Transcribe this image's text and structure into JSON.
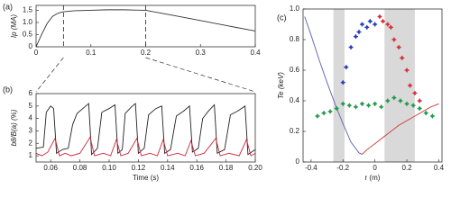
{
  "chart_data": [
    {
      "type": "line",
      "panel": "(a)",
      "ylabel": "Ip (MA)",
      "xlim": [
        0,
        0.4
      ],
      "ylim": [
        0,
        1.7
      ],
      "xticks": [
        0,
        0.1,
        0.2,
        0.3,
        0.4
      ],
      "yticks": [
        0,
        0.5,
        {
          "value": 1,
          "label": "1.0"
        },
        1.5
      ],
      "markers": [
        0.05,
        0.2
      ],
      "series": [
        {
          "name": "Ip",
          "color": "#333333",
          "x": [
            0,
            0.01,
            0.02,
            0.03,
            0.04,
            0.05,
            0.07,
            0.1,
            0.13,
            0.16,
            0.18,
            0.2,
            0.25,
            0.3,
            0.35,
            0.4
          ],
          "values": [
            0,
            0.5,
            0.95,
            1.25,
            1.38,
            1.44,
            1.48,
            1.5,
            1.52,
            1.52,
            1.51,
            1.5,
            1.29,
            1.08,
            0.86,
            0.65
          ]
        }
      ]
    },
    {
      "type": "line",
      "panel": "(b)",
      "ylabel": "bθ/B(a) (%)",
      "xlabel": "Time (s)",
      "xlim": [
        0.05,
        0.2
      ],
      "ylim": [
        0.5,
        6
      ],
      "xticks": [
        0.06,
        0.08,
        {
          "value": 0.1,
          "label": "0.10"
        },
        0.12,
        0.14,
        0.16,
        0.18,
        {
          "value": 0.2,
          "label": "0.20"
        }
      ],
      "yticks": [
        1,
        2,
        3,
        4,
        5,
        6
      ],
      "series": [
        {
          "name": "black",
          "color": "#222222",
          "x": [
            0.05,
            0.055,
            0.057,
            0.06,
            0.062,
            0.064,
            0.068,
            0.072,
            0.075,
            0.078,
            0.082,
            0.086,
            0.088,
            0.092,
            0.095,
            0.1,
            0.104,
            0.106,
            0.109,
            0.111,
            0.115,
            0.118,
            0.12,
            0.124,
            0.127,
            0.132,
            0.136,
            0.138,
            0.142,
            0.146,
            0.151,
            0.155,
            0.157,
            0.161,
            0.164,
            0.168,
            0.172,
            0.174,
            0.179,
            0.183,
            0.188,
            0.193,
            0.195,
            0.2
          ],
          "values": [
            1.6,
            1.7,
            4.5,
            5.0,
            4.8,
            1.2,
            1.5,
            1.6,
            3.5,
            4.4,
            4.8,
            5.2,
            1.1,
            1.6,
            4.5,
            4.8,
            5.1,
            1.2,
            1.5,
            4.4,
            4.9,
            5.2,
            1.2,
            1.6,
            4.3,
            4.8,
            5.0,
            1.2,
            1.5,
            4.2,
            4.6,
            5.0,
            1.3,
            1.6,
            4.0,
            4.6,
            5.1,
            1.2,
            1.5,
            4.3,
            4.6,
            5.0,
            1.1,
            1.5
          ]
        },
        {
          "name": "red",
          "color": "#d0263a",
          "x": [
            0.05,
            0.054,
            0.058,
            0.063,
            0.066,
            0.07,
            0.074,
            0.08,
            0.087,
            0.09,
            0.096,
            0.101,
            0.105,
            0.108,
            0.113,
            0.119,
            0.122,
            0.128,
            0.133,
            0.137,
            0.14,
            0.147,
            0.152,
            0.156,
            0.159,
            0.165,
            0.173,
            0.176,
            0.182,
            0.189,
            0.194,
            0.197,
            0.2
          ],
          "values": [
            1.2,
            1.0,
            1.3,
            2.4,
            1.0,
            1.2,
            1.0,
            1.2,
            2.5,
            1.0,
            1.2,
            1.0,
            2.3,
            1.0,
            1.2,
            2.4,
            1.0,
            1.2,
            1.0,
            2.3,
            1.0,
            1.2,
            1.0,
            2.2,
            1.0,
            1.2,
            2.4,
            1.0,
            1.2,
            1.0,
            2.3,
            1.0,
            1.2
          ]
        }
      ]
    },
    {
      "type": "scatter",
      "panel": "(c)",
      "ylabel": "Te (keV)",
      "xlabel": "r (m)",
      "xlim": [
        -0.45,
        0.42
      ],
      "ylim": [
        0,
        1
      ],
      "xticks": [
        -0.4,
        -0.2,
        0,
        0.2,
        0.4
      ],
      "yticks": [
        0,
        0.2,
        0.4,
        0.6,
        0.8,
        {
          "value": 1,
          "label": "1.0"
        }
      ],
      "shaded": [
        [
          -0.26,
          -0.19
        ],
        [
          0.06,
          0.25
        ]
      ],
      "series": [
        {
          "name": "blue-line",
          "mode": "line",
          "color": "#6a6ab8",
          "x": [
            -0.44,
            -0.4,
            -0.35,
            -0.3,
            -0.25,
            -0.2,
            -0.15,
            -0.1,
            -0.08
          ],
          "values": [
            0.95,
            0.83,
            0.67,
            0.52,
            0.38,
            0.25,
            0.13,
            0.06,
            0.05
          ]
        },
        {
          "name": "red-line",
          "mode": "line",
          "color": "#d04848",
          "x": [
            -0.08,
            -0.05,
            0,
            0.05,
            0.1,
            0.15,
            0.2,
            0.25,
            0.3,
            0.35,
            0.4
          ],
          "values": [
            0.05,
            0.08,
            0.12,
            0.16,
            0.2,
            0.24,
            0.27,
            0.3,
            0.33,
            0.36,
            0.38
          ]
        },
        {
          "name": "blue-points",
          "mode": "markers",
          "color": "#2a3fc0",
          "x": [
            -0.2,
            -0.18,
            -0.15,
            -0.12,
            -0.1,
            -0.08,
            -0.05,
            -0.03,
            0
          ],
          "values": [
            0.52,
            0.62,
            0.75,
            0.82,
            0.85,
            0.9,
            0.88,
            0.92,
            0.9
          ]
        },
        {
          "name": "red-points",
          "mode": "markers",
          "color": "#d6303a",
          "x": [
            0.03,
            0.05,
            0.08,
            0.1,
            0.12,
            0.15,
            0.17,
            0.2,
            0.22,
            0.25,
            0.28
          ],
          "values": [
            0.95,
            0.92,
            0.9,
            0.88,
            0.8,
            0.75,
            0.68,
            0.6,
            0.5,
            0.45,
            0.4
          ]
        },
        {
          "name": "green-points",
          "mode": "markers",
          "color": "#22994a",
          "x": [
            -0.36,
            -0.32,
            -0.28,
            -0.24,
            -0.2,
            -0.16,
            -0.12,
            -0.08,
            -0.04,
            0,
            0.04,
            0.08,
            0.12,
            0.16,
            0.2,
            0.24,
            0.28,
            0.32,
            0.36
          ],
          "values": [
            0.3,
            0.32,
            0.33,
            0.35,
            0.38,
            0.37,
            0.36,
            0.38,
            0.37,
            0.38,
            0.36,
            0.4,
            0.42,
            0.4,
            0.38,
            0.37,
            0.35,
            0.32,
            0.3
          ]
        }
      ]
    }
  ]
}
